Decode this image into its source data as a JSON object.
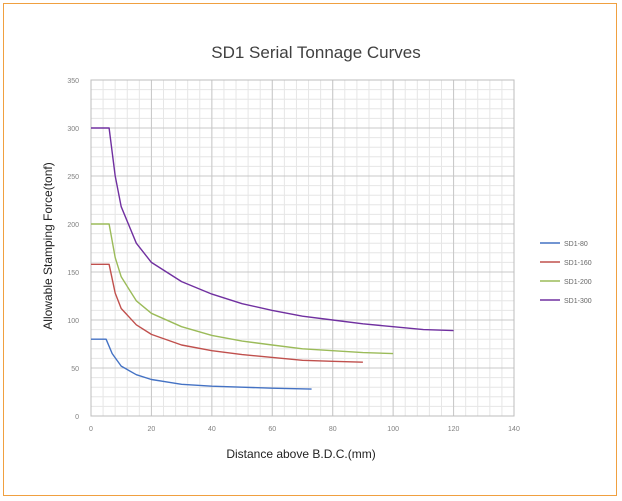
{
  "chart_data": {
    "type": "line",
    "title": "SD1 Serial Tonnage Curves",
    "xlabel": "Distance above B.D.C.(mm)",
    "ylabel": "Allowable Stamping Force(tonf)",
    "xlim": [
      0,
      140
    ],
    "ylim": [
      0,
      350
    ],
    "xticks": [
      0,
      20,
      40,
      60,
      80,
      100,
      120,
      140
    ],
    "yticks": [
      0,
      50,
      100,
      150,
      200,
      250,
      300,
      350
    ],
    "xtick_labels": [
      "0",
      "20",
      "40",
      "60",
      "80",
      "100",
      "120",
      "140"
    ],
    "ytick_labels": [
      "0",
      "50",
      "100",
      "150",
      "200",
      "250",
      "300",
      "350"
    ],
    "grid": true,
    "legend_position": "right",
    "series": [
      {
        "name": "SD1-80",
        "color": "#4472c4",
        "x": [
          0,
          5,
          7,
          10,
          15,
          20,
          30,
          40,
          50,
          60,
          73
        ],
        "y": [
          80,
          80,
          65,
          52,
          43,
          38,
          33,
          31,
          30,
          29,
          28
        ]
      },
      {
        "name": "SD1-160",
        "color": "#c0504d",
        "x": [
          0,
          6,
          8,
          10,
          15,
          20,
          30,
          40,
          50,
          60,
          70,
          80,
          90
        ],
        "y": [
          158,
          158,
          128,
          112,
          95,
          85,
          74,
          68,
          64,
          61,
          58,
          57,
          56
        ]
      },
      {
        "name": "SD1-200",
        "color": "#9bbb59",
        "x": [
          0,
          6,
          8,
          10,
          15,
          20,
          30,
          40,
          50,
          60,
          70,
          80,
          90,
          100
        ],
        "y": [
          200,
          200,
          165,
          145,
          120,
          107,
          93,
          84,
          78,
          74,
          70,
          68,
          66,
          65
        ]
      },
      {
        "name": "SD1-300",
        "color": "#7030a0",
        "x": [
          0,
          6,
          8,
          10,
          15,
          20,
          30,
          40,
          50,
          60,
          70,
          80,
          90,
          100,
          110,
          120
        ],
        "y": [
          300,
          300,
          250,
          218,
          180,
          160,
          140,
          127,
          117,
          110,
          104,
          100,
          96,
          93,
          90,
          89
        ]
      }
    ]
  }
}
